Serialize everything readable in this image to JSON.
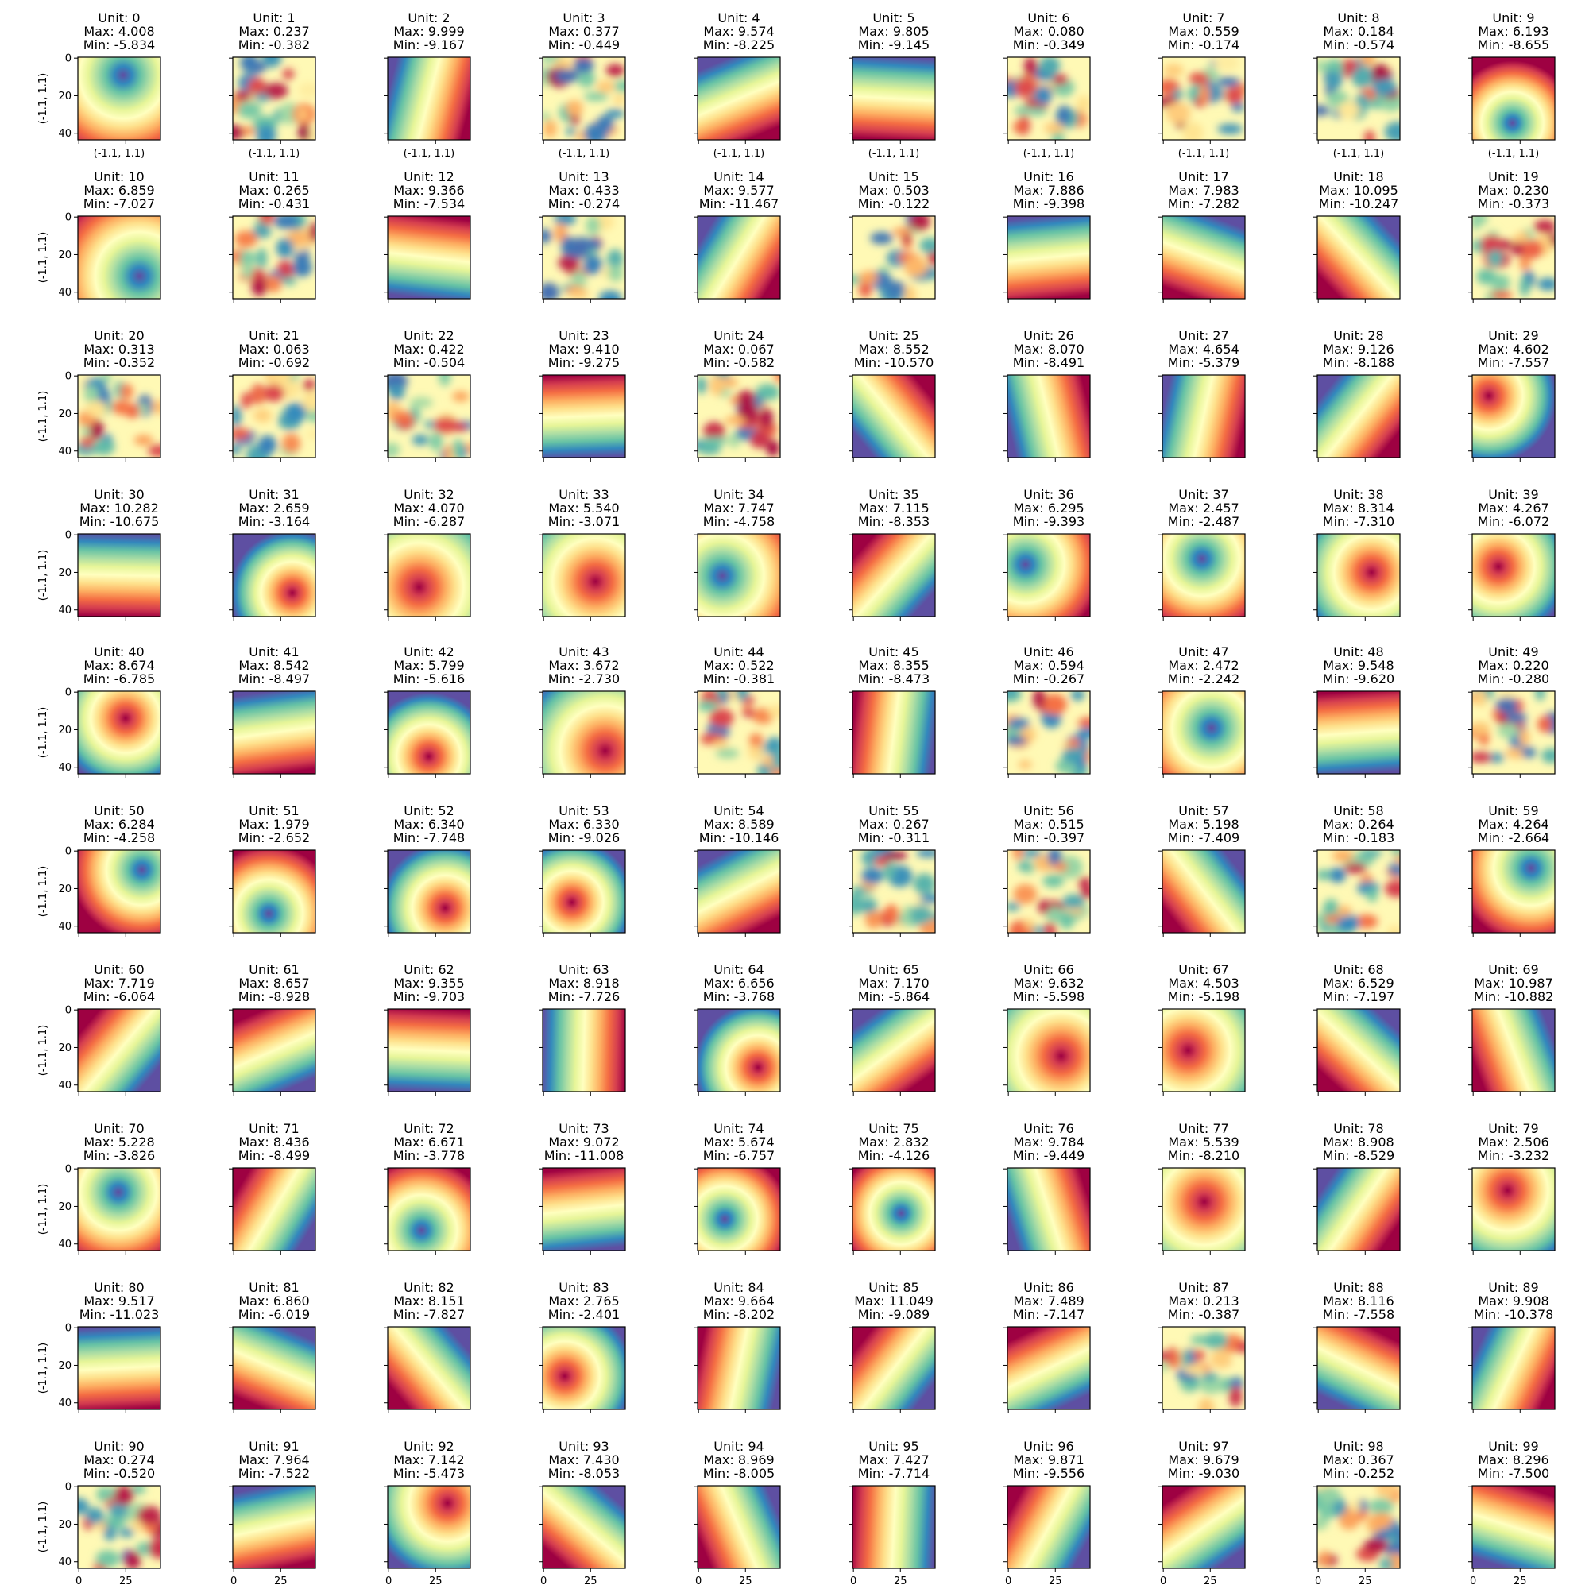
{
  "figure": {
    "colormap": "Spectral_r",
    "axis_label": "(-1.1, 1.1)",
    "x_ticks": [
      "0",
      "25"
    ],
    "y_ticks": [
      "0",
      "20",
      "40"
    ],
    "title_unit_prefix": "Unit: ",
    "title_max_prefix": "Max: ",
    "title_min_prefix": "Min: "
  },
  "chart_data": {
    "type": "heatmap",
    "grid": {
      "rows": 10,
      "cols": 10
    },
    "cell_extent": {
      "x": [
        0,
        44
      ],
      "y": [
        0,
        44
      ]
    },
    "units": [
      {
        "unit": "0",
        "max": "4.008",
        "min": "-5.834"
      },
      {
        "unit": "1",
        "max": "0.237",
        "min": "-0.382"
      },
      {
        "unit": "2",
        "max": "9.999",
        "min": "-9.167"
      },
      {
        "unit": "3",
        "max": "0.377",
        "min": "-0.449"
      },
      {
        "unit": "4",
        "max": "9.574",
        "min": "-8.225"
      },
      {
        "unit": "5",
        "max": "9.805",
        "min": "-9.145"
      },
      {
        "unit": "6",
        "max": "0.080",
        "min": "-0.349"
      },
      {
        "unit": "7",
        "max": "0.559",
        "min": "-0.174"
      },
      {
        "unit": "8",
        "max": "0.184",
        "min": "-0.574"
      },
      {
        "unit": "9",
        "max": "6.193",
        "min": "-8.655"
      },
      {
        "unit": "10",
        "max": "6.859",
        "min": "-7.027"
      },
      {
        "unit": "11",
        "max": "0.265",
        "min": "-0.431"
      },
      {
        "unit": "12",
        "max": "9.366",
        "min": "-7.534"
      },
      {
        "unit": "13",
        "max": "0.433",
        "min": "-0.274"
      },
      {
        "unit": "14",
        "max": "9.577",
        "min": "-11.467"
      },
      {
        "unit": "15",
        "max": "0.503",
        "min": "-0.122"
      },
      {
        "unit": "16",
        "max": "7.886",
        "min": "-9.398"
      },
      {
        "unit": "17",
        "max": "7.983",
        "min": "-7.282"
      },
      {
        "unit": "18",
        "max": "10.095",
        "min": "-10.247"
      },
      {
        "unit": "19",
        "max": "0.230",
        "min": "-0.373"
      },
      {
        "unit": "20",
        "max": "0.313",
        "min": "-0.352"
      },
      {
        "unit": "21",
        "max": "0.063",
        "min": "-0.692"
      },
      {
        "unit": "22",
        "max": "0.422",
        "min": "-0.504"
      },
      {
        "unit": "23",
        "max": "9.410",
        "min": "-9.275"
      },
      {
        "unit": "24",
        "max": "0.067",
        "min": "-0.582"
      },
      {
        "unit": "25",
        "max": "8.552",
        "min": "-10.570"
      },
      {
        "unit": "26",
        "max": "8.070",
        "min": "-8.491"
      },
      {
        "unit": "27",
        "max": "4.654",
        "min": "-5.379"
      },
      {
        "unit": "28",
        "max": "9.126",
        "min": "-8.188"
      },
      {
        "unit": "29",
        "max": "4.602",
        "min": "-7.557"
      },
      {
        "unit": "30",
        "max": "10.282",
        "min": "-10.675"
      },
      {
        "unit": "31",
        "max": "2.659",
        "min": "-3.164"
      },
      {
        "unit": "32",
        "max": "4.070",
        "min": "-6.287"
      },
      {
        "unit": "33",
        "max": "5.540",
        "min": "-3.071"
      },
      {
        "unit": "34",
        "max": "7.747",
        "min": "-4.758"
      },
      {
        "unit": "35",
        "max": "7.115",
        "min": "-8.353"
      },
      {
        "unit": "36",
        "max": "6.295",
        "min": "-9.393"
      },
      {
        "unit": "37",
        "max": "2.457",
        "min": "-2.487"
      },
      {
        "unit": "38",
        "max": "8.314",
        "min": "-7.310"
      },
      {
        "unit": "39",
        "max": "4.267",
        "min": "-6.072"
      },
      {
        "unit": "40",
        "max": "8.674",
        "min": "-6.785"
      },
      {
        "unit": "41",
        "max": "8.542",
        "min": "-8.497"
      },
      {
        "unit": "42",
        "max": "5.799",
        "min": "-5.616"
      },
      {
        "unit": "43",
        "max": "3.672",
        "min": "-2.730"
      },
      {
        "unit": "44",
        "max": "0.522",
        "min": "-0.381"
      },
      {
        "unit": "45",
        "max": "8.355",
        "min": "-8.473"
      },
      {
        "unit": "46",
        "max": "0.594",
        "min": "-0.267"
      },
      {
        "unit": "47",
        "max": "2.472",
        "min": "-2.242"
      },
      {
        "unit": "48",
        "max": "9.548",
        "min": "-9.620"
      },
      {
        "unit": "49",
        "max": "0.220",
        "min": "-0.280"
      },
      {
        "unit": "50",
        "max": "6.284",
        "min": "-4.258"
      },
      {
        "unit": "51",
        "max": "1.979",
        "min": "-2.652"
      },
      {
        "unit": "52",
        "max": "6.340",
        "min": "-7.748"
      },
      {
        "unit": "53",
        "max": "6.330",
        "min": "-9.026"
      },
      {
        "unit": "54",
        "max": "8.589",
        "min": "-10.146"
      },
      {
        "unit": "55",
        "max": "0.267",
        "min": "-0.311"
      },
      {
        "unit": "56",
        "max": "0.515",
        "min": "-0.397"
      },
      {
        "unit": "57",
        "max": "5.198",
        "min": "-7.409"
      },
      {
        "unit": "58",
        "max": "0.264",
        "min": "-0.183"
      },
      {
        "unit": "59",
        "max": "4.264",
        "min": "-2.664"
      },
      {
        "unit": "60",
        "max": "7.719",
        "min": "-6.064"
      },
      {
        "unit": "61",
        "max": "8.657",
        "min": "-8.928"
      },
      {
        "unit": "62",
        "max": "9.355",
        "min": "-9.703"
      },
      {
        "unit": "63",
        "max": "8.918",
        "min": "-7.726"
      },
      {
        "unit": "64",
        "max": "6.656",
        "min": "-3.768"
      },
      {
        "unit": "65",
        "max": "7.170",
        "min": "-5.864"
      },
      {
        "unit": "66",
        "max": "9.632",
        "min": "-5.598"
      },
      {
        "unit": "67",
        "max": "4.503",
        "min": "-5.198"
      },
      {
        "unit": "68",
        "max": "6.529",
        "min": "-7.197"
      },
      {
        "unit": "69",
        "max": "10.987",
        "min": "-10.882"
      },
      {
        "unit": "70",
        "max": "5.228",
        "min": "-3.826"
      },
      {
        "unit": "71",
        "max": "8.436",
        "min": "-8.499"
      },
      {
        "unit": "72",
        "max": "6.671",
        "min": "-3.778"
      },
      {
        "unit": "73",
        "max": "9.072",
        "min": "-11.008"
      },
      {
        "unit": "74",
        "max": "5.674",
        "min": "-6.757"
      },
      {
        "unit": "75",
        "max": "2.832",
        "min": "-4.126"
      },
      {
        "unit": "76",
        "max": "9.784",
        "min": "-9.449"
      },
      {
        "unit": "77",
        "max": "5.539",
        "min": "-8.210"
      },
      {
        "unit": "78",
        "max": "8.908",
        "min": "-8.529"
      },
      {
        "unit": "79",
        "max": "2.506",
        "min": "-3.232"
      },
      {
        "unit": "80",
        "max": "9.517",
        "min": "-11.023"
      },
      {
        "unit": "81",
        "max": "6.860",
        "min": "-6.019"
      },
      {
        "unit": "82",
        "max": "8.151",
        "min": "-7.827"
      },
      {
        "unit": "83",
        "max": "2.765",
        "min": "-2.401"
      },
      {
        "unit": "84",
        "max": "9.664",
        "min": "-8.202"
      },
      {
        "unit": "85",
        "max": "11.049",
        "min": "-9.089"
      },
      {
        "unit": "86",
        "max": "7.489",
        "min": "-7.147"
      },
      {
        "unit": "87",
        "max": "0.213",
        "min": "-0.387"
      },
      {
        "unit": "88",
        "max": "8.116",
        "min": "-7.558"
      },
      {
        "unit": "89",
        "max": "9.908",
        "min": "-10.378"
      },
      {
        "unit": "90",
        "max": "0.274",
        "min": "-0.520"
      },
      {
        "unit": "91",
        "max": "7.964",
        "min": "-7.522"
      },
      {
        "unit": "92",
        "max": "7.142",
        "min": "-5.473"
      },
      {
        "unit": "93",
        "max": "7.430",
        "min": "-8.053"
      },
      {
        "unit": "94",
        "max": "8.969",
        "min": "-8.005"
      },
      {
        "unit": "95",
        "max": "7.427",
        "min": "-7.714"
      },
      {
        "unit": "96",
        "max": "9.871",
        "min": "-9.556"
      },
      {
        "unit": "97",
        "max": "9.679",
        "min": "-9.030"
      },
      {
        "unit": "98",
        "max": "0.367",
        "min": "-0.252"
      },
      {
        "unit": "99",
        "max": "8.296",
        "min": "-7.500"
      }
    ]
  }
}
